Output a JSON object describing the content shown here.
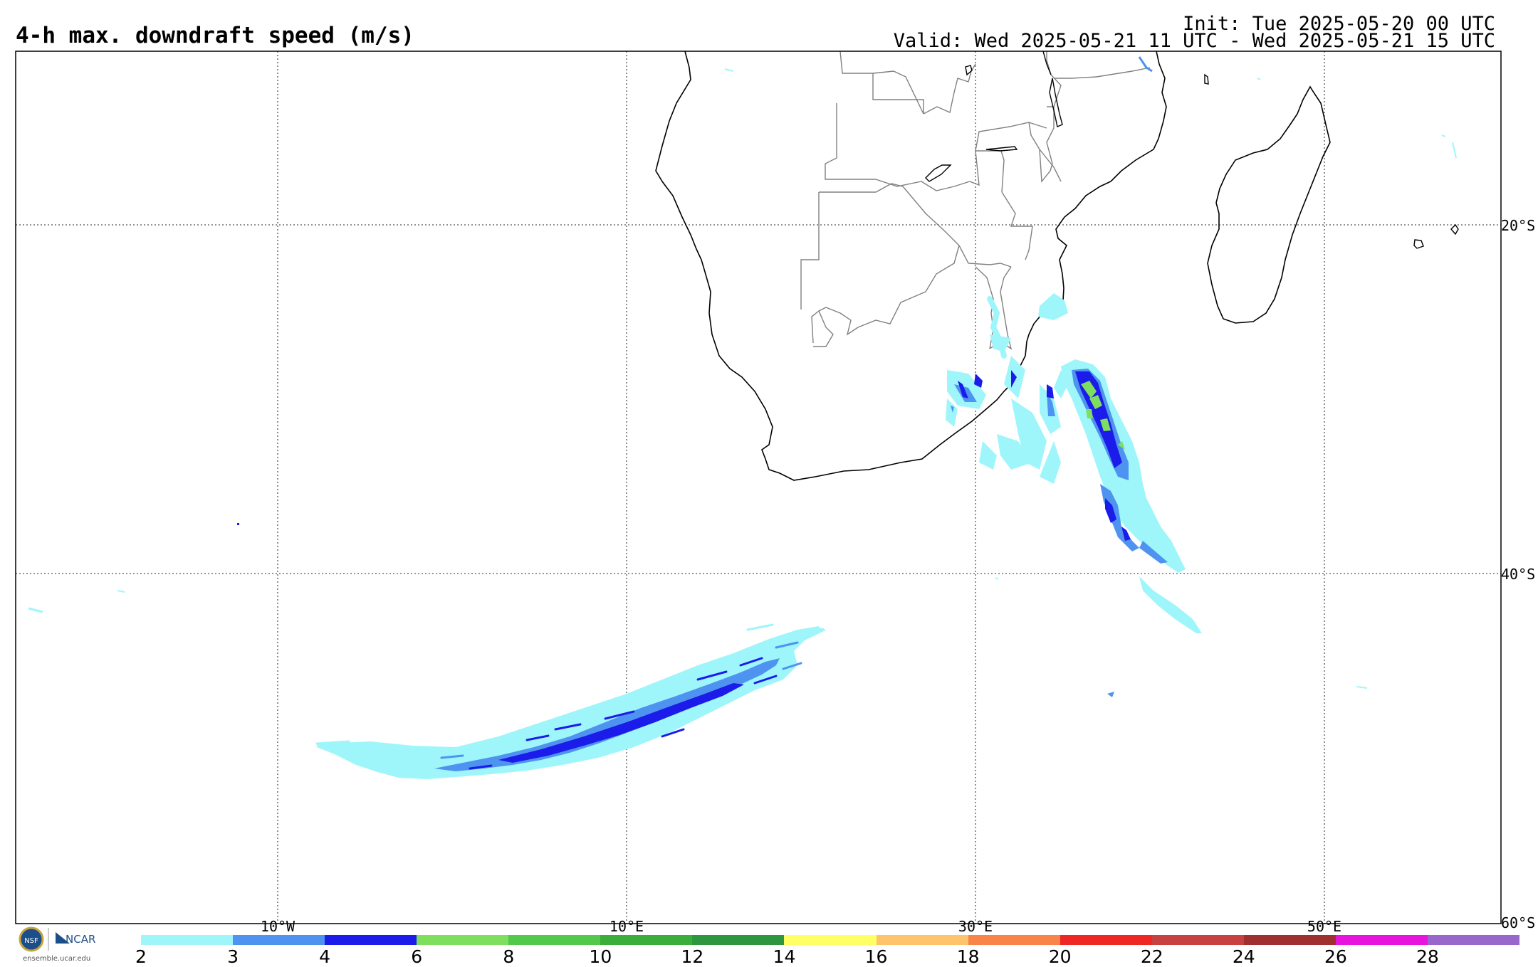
{
  "header": {
    "title": "4-h max. downdraft speed (m/s)",
    "init": "Init: Tue 2025-05-20 00 UTC",
    "valid": "Valid: Wed 2025-05-21 11 UTC - Wed 2025-05-21 15 UTC"
  },
  "axes": {
    "lat_labels": [
      "20°S",
      "40°S",
      "60°S"
    ],
    "lon_labels": [
      "10°W",
      "10°E",
      "30°E",
      "50°E"
    ]
  },
  "colorbar": {
    "ticks": [
      "2",
      "3",
      "4",
      "6",
      "8",
      "10",
      "12",
      "14",
      "16",
      "18",
      "20",
      "22",
      "24",
      "26",
      "28"
    ],
    "colors": [
      "#9ef6fb",
      "#4f93f0",
      "#1b1bea",
      "#7ede5e",
      "#52c94a",
      "#3aad3a",
      "#2f9640",
      "#ffff66",
      "#fdc46b",
      "#f9844a",
      "#ee2626",
      "#c84040",
      "#a03030",
      "#e614dd",
      "#9966cc"
    ]
  },
  "footer": {
    "logo_org": "NCAR",
    "logo_seal": "NSF",
    "url": "ensemble.ucar.edu"
  },
  "colors": {
    "grid": "#555555",
    "coast": "#000000",
    "border": "#808080",
    "frame": "#000000"
  }
}
